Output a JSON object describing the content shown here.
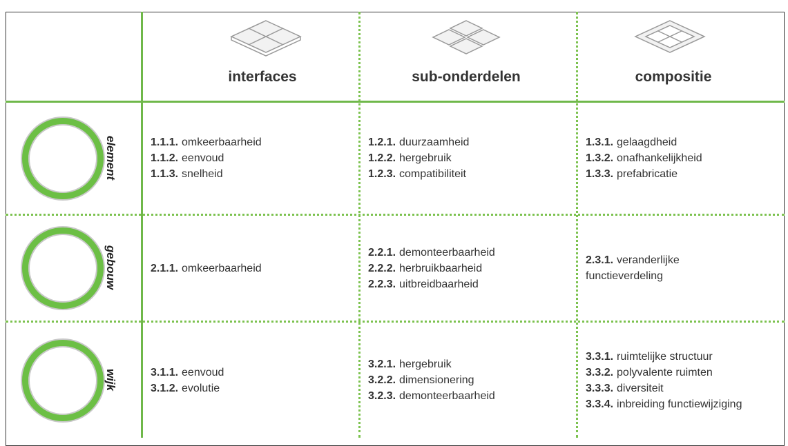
{
  "columns": [
    "interfaces",
    "sub-onderdelen",
    "compositie"
  ],
  "rows": [
    {
      "label": "element",
      "cells": [
        [
          {
            "number": "1.1.1.",
            "text": "omkeerbaarheid"
          },
          {
            "number": "1.1.2.",
            "text": "eenvoud"
          },
          {
            "number": "1.1.3.",
            "text": "snelheid"
          }
        ],
        [
          {
            "number": "1.2.1.",
            "text": "duurzaamheid"
          },
          {
            "number": "1.2.2.",
            "text": "hergebruik"
          },
          {
            "number": "1.2.3.",
            "text": "compatibiliteit"
          }
        ],
        [
          {
            "number": "1.3.1.",
            "text": "gelaagdheid"
          },
          {
            "number": "1.3.2.",
            "text": "onafhankelijkheid"
          },
          {
            "number": "1.3.3.",
            "text": "prefabricatie"
          }
        ]
      ]
    },
    {
      "label": "gebouw",
      "cells": [
        [
          {
            "number": "2.1.1.",
            "text": "omkeerbaarheid"
          }
        ],
        [
          {
            "number": "2.2.1.",
            "text": "demonteerbaarheid"
          },
          {
            "number": "2.2.2.",
            "text": "herbruikbaarheid"
          },
          {
            "number": "2.2.3.",
            "text": "uitbreidbaarheid"
          }
        ],
        [
          {
            "number": "2.3.1.",
            "text": "veranderlijke functieverdeling"
          }
        ]
      ]
    },
    {
      "label": "wijk",
      "cells": [
        [
          {
            "number": "3.1.1.",
            "text": "eenvoud"
          },
          {
            "number": "3.1.2.",
            "text": "evolutie"
          }
        ],
        [
          {
            "number": "3.2.1.",
            "text": "hergebruik"
          },
          {
            "number": "3.2.2.",
            "text": "dimensionering"
          },
          {
            "number": "3.2.3.",
            "text": "demonteerbaarheid"
          }
        ],
        [
          {
            "number": "3.3.1.",
            "text": "ruimtelijke structuur"
          },
          {
            "number": "3.3.2.",
            "text": "polyvalente ruimten"
          },
          {
            "number": "3.3.3.",
            "text": "diversiteit"
          },
          {
            "number": "3.3.4.",
            "text": "inbreiding functiewijziging"
          }
        ]
      ]
    }
  ]
}
